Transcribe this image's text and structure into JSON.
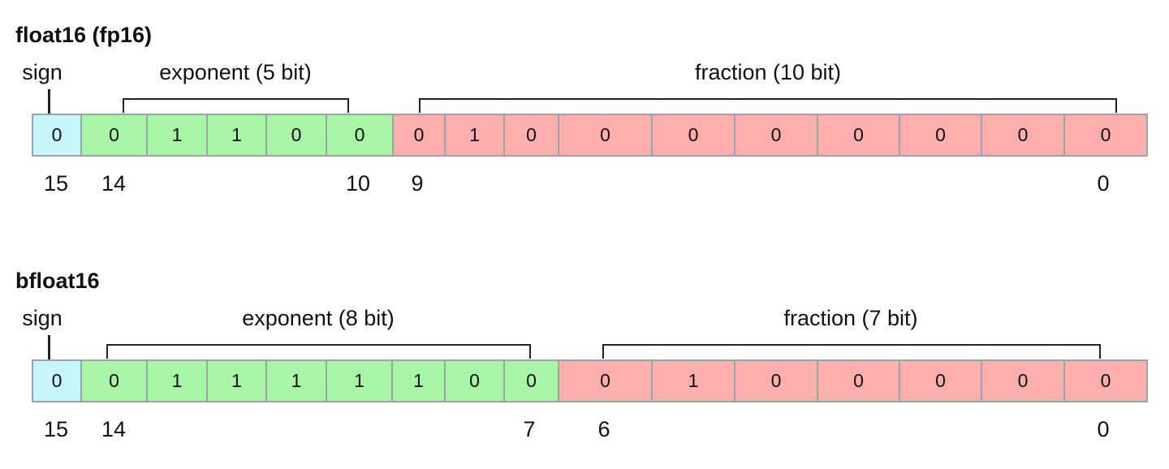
{
  "colors": {
    "sign": "#c6f5fa",
    "exponent": "#a8f5a8",
    "fraction": "#ffaeae",
    "border": "#9aa3a8"
  },
  "formats": [
    {
      "title": "float16 (fp16)",
      "sign_label": "sign",
      "exponent_label": "exponent (5 bit)",
      "fraction_label": "fraction (10 bit)",
      "bits": [
        {
          "field": "sign",
          "value": "0"
        },
        {
          "field": "exponent",
          "value": "0"
        },
        {
          "field": "exponent",
          "value": "1"
        },
        {
          "field": "exponent",
          "value": "1"
        },
        {
          "field": "exponent",
          "value": "0"
        },
        {
          "field": "exponent",
          "value": "0"
        },
        {
          "field": "fraction",
          "value": "0"
        },
        {
          "field": "fraction",
          "value": "1"
        },
        {
          "field": "fraction",
          "value": "0"
        },
        {
          "field": "fraction",
          "value": "0"
        },
        {
          "field": "fraction",
          "value": "0"
        },
        {
          "field": "fraction",
          "value": "0"
        },
        {
          "field": "fraction",
          "value": "0"
        },
        {
          "field": "fraction",
          "value": "0"
        },
        {
          "field": "fraction",
          "value": "0"
        },
        {
          "field": "fraction",
          "value": "0"
        }
      ],
      "index_labels": [
        "15",
        "14",
        "10",
        "9",
        "0"
      ]
    },
    {
      "title": "bfloat16",
      "sign_label": "sign",
      "exponent_label": "exponent (8 bit)",
      "fraction_label": "fraction (7 bit)",
      "bits": [
        {
          "field": "sign",
          "value": "0"
        },
        {
          "field": "exponent",
          "value": "0"
        },
        {
          "field": "exponent",
          "value": "1"
        },
        {
          "field": "exponent",
          "value": "1"
        },
        {
          "field": "exponent",
          "value": "1"
        },
        {
          "field": "exponent",
          "value": "1"
        },
        {
          "field": "exponent",
          "value": "1"
        },
        {
          "field": "exponent",
          "value": "0"
        },
        {
          "field": "exponent",
          "value": "0"
        },
        {
          "field": "fraction",
          "value": "0"
        },
        {
          "field": "fraction",
          "value": "1"
        },
        {
          "field": "fraction",
          "value": "0"
        },
        {
          "field": "fraction",
          "value": "0"
        },
        {
          "field": "fraction",
          "value": "0"
        },
        {
          "field": "fraction",
          "value": "0"
        },
        {
          "field": "fraction",
          "value": "0"
        }
      ],
      "index_labels": [
        "15",
        "14",
        "7",
        "6",
        "0"
      ]
    }
  ]
}
